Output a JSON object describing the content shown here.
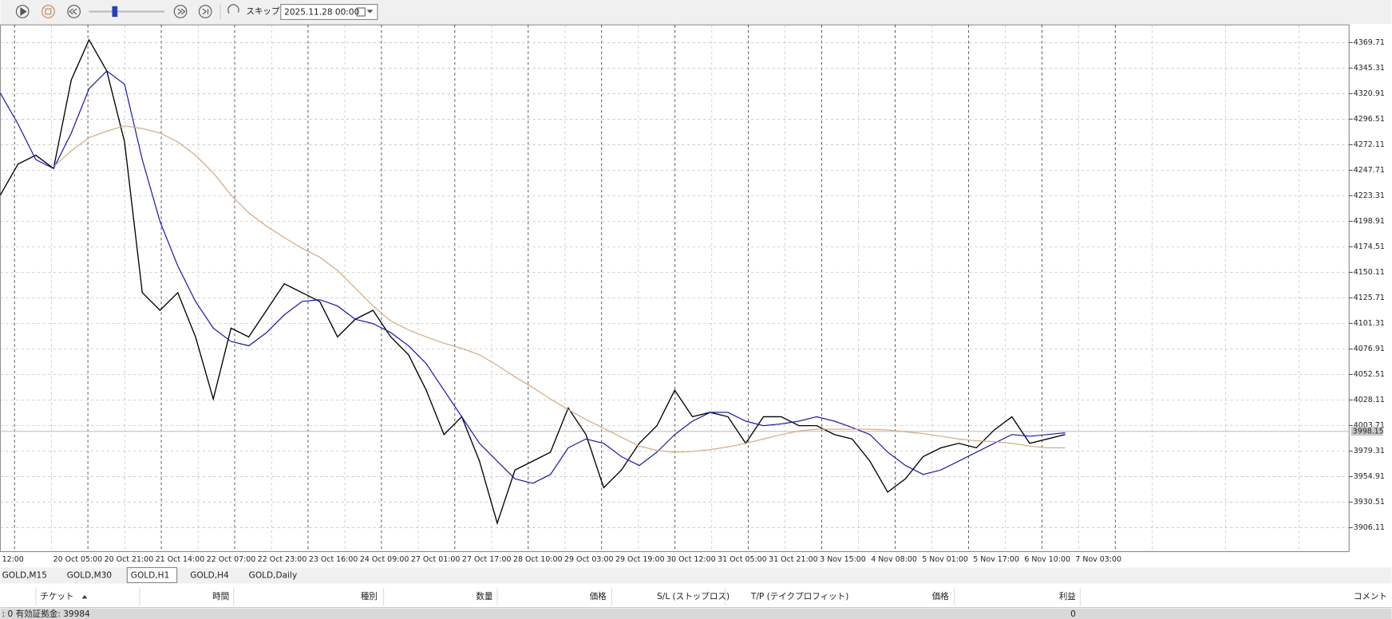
{
  "toolbar": {
    "skip_label": "スキップ",
    "date": "2025.11.28 00:00"
  },
  "chart": {
    "type": "line",
    "ylim": [
      3883.23,
      4386.66
    ],
    "yticks": [
      4369.71,
      4345.31,
      4320.91,
      4296.51,
      4272.11,
      4247.71,
      4223.31,
      4198.91,
      4174.51,
      4150.11,
      4125.71,
      4101.31,
      4076.91,
      4052.51,
      4028.11,
      4003.71,
      3979.31,
      3954.91,
      3930.51,
      3906.11
    ],
    "last_price": 3998.15,
    "xlabels": [
      "12:00",
      "20 Oct 05:00",
      "20 Oct 21:00",
      "21 Oct 14:00",
      "22 Oct 07:00",
      "22 Oct 23:00",
      "23 Oct 16:00",
      "24 Oct 09:00",
      "27 Oct 01:00",
      "27 Oct 17:00",
      "28 Oct 10:00",
      "29 Oct 03:00",
      "29 Oct 19:00",
      "30 Oct 12:00",
      "31 Oct 05:00",
      "31 Oct 21:00",
      "3 Nov 15:00",
      "4 Nov 08:00",
      "5 Nov 01:00",
      "5 Nov 17:00",
      "6 Nov 10:00",
      "7 Nov 03:00"
    ],
    "series": [
      {
        "color": "#000000",
        "values": [
          4223.9,
          4253.6,
          4262.1,
          4249.4,
          4334.1,
          4372.3,
          4342.6,
          4274.8,
          4130.7,
          4113.8,
          4130.7,
          4088.4,
          4029.0,
          4096.8,
          4088.4,
          4113.8,
          4139.2,
          4130.7,
          4122.2,
          4088.4,
          4105.3,
          4113.8,
          4088.4,
          4071.4,
          4037.5,
          3995.1,
          4012.1,
          3969.7,
          3910.4,
          3961.2,
          3969.7,
          3978.2,
          4020.5,
          3995.1,
          3944.3,
          3961.2,
          3986.7,
          4003.6,
          4037.5,
          4012.1,
          4016.3,
          4012.1,
          3986.7,
          4012.1,
          4012.1,
          4003.6,
          4003.6,
          3995.1,
          3990.9,
          3969.7,
          3940.1,
          3952.8,
          3974.0,
          3982.4,
          3986.7,
          3982.4,
          3999.4,
          4012.1,
          3986.7,
          3990.9,
          3995.1
        ]
      },
      {
        "color": "#0000ff",
        "values": [
          4321.4,
          4291.7,
          4257.8,
          4249.4,
          4283.3,
          4325.6,
          4342.6,
          4329.9,
          4257.8,
          4198.5,
          4156.2,
          4122.2,
          4096.8,
          4084.1,
          4079.9,
          4092.6,
          4109.5,
          4122.2,
          4124.0,
          4118.0,
          4105.3,
          4101.1,
          4092.6,
          4079.9,
          4062.9,
          4037.5,
          4012.1,
          3986.7,
          3969.7,
          3952.8,
          3948.5,
          3957.0,
          3982.4,
          3990.9,
          3986.7,
          3974.0,
          3965.5,
          3978.2,
          3995.1,
          4007.9,
          4016.3,
          4016.3,
          4007.9,
          4003.6,
          4005.3,
          4007.9,
          4012.1,
          4007.9,
          4001.9,
          3995.1,
          3978.2,
          3965.5,
          3957.0,
          3961.3,
          3969.7,
          3978.2,
          3986.7,
          3995.1,
          3993.5,
          3995.1,
          3996.8
        ]
      },
      {
        "color": "#e0a070",
        "values": [
          null,
          null,
          null,
          4251.1,
          4266.3,
          4279.0,
          4285.0,
          4290.1,
          4287.5,
          4283.3,
          4274.8,
          4262.1,
          4245.1,
          4223.9,
          4207.0,
          4194.3,
          4183.3,
          4173.1,
          4164.6,
          4151.9,
          4135.0,
          4118.0,
          4103.6,
          4095.2,
          4088.4,
          4082.4,
          4077.4,
          4071.4,
          4061.2,
          4050.2,
          4040.1,
          4029.0,
          4018.9,
          4009.5,
          4001.1,
          3992.6,
          3984.1,
          3979.9,
          3978.2,
          3979.0,
          3980.7,
          3983.3,
          3986.7,
          3990.9,
          3995.1,
          3998.5,
          4000.2,
          4000.2,
          4000.2,
          4000.2,
          3999.4,
          3997.7,
          3996.0,
          3993.5,
          3990.9,
          3989.2,
          3988.4,
          3986.7,
          3984.1,
          3982.4,
          3982.4
        ]
      }
    ]
  },
  "tabs": {
    "items": [
      "GOLD,M15",
      "GOLD,M30",
      "GOLD,H1",
      "GOLD,H4",
      "GOLD,Daily"
    ],
    "active": 2
  },
  "table": {
    "headers": [
      "チケット",
      "時間",
      "種別",
      "数量",
      "価格",
      "S/L (ストップロス)",
      "T/P (テイクプロフィット)",
      "価格",
      "利益",
      "コメント"
    ]
  },
  "status": {
    "left": ": 0  有効証拠金: 39984",
    "profit": "0"
  }
}
